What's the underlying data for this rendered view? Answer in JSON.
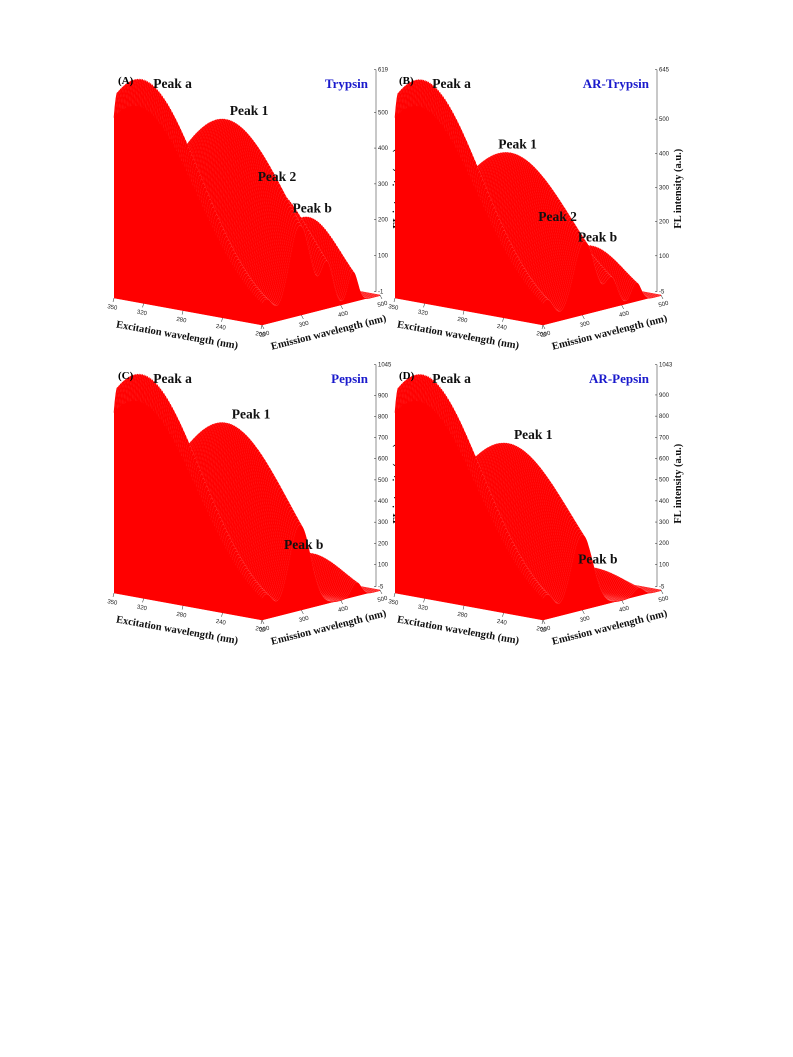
{
  "colors": {
    "surface": "#ff0000",
    "mesh": "#ffe0e0",
    "title": "#1a1acc"
  },
  "chart_data": [
    {
      "type": "surface",
      "panel": "(A)",
      "title": "Trypsin",
      "xlabel": "Emission wavelength (nm)",
      "ylabel": "Excitation wavelength (nm)",
      "zlabel": "FL intensity (a.u.)",
      "xlim": [
        200,
        500
      ],
      "ylim": [
        200,
        350
      ],
      "zlim": [
        -1,
        619
      ],
      "x_ticks": [
        "200",
        "300",
        "400",
        "500"
      ],
      "y_ticks": [
        "200",
        "240",
        "280",
        "320",
        "350"
      ],
      "z_ticks": [
        "-1",
        "100",
        "200",
        "300",
        "400",
        "500",
        "619"
      ],
      "peaks": [
        {
          "label": "Peak a",
          "value": 619
        },
        {
          "label": "Peak 1",
          "value": 510
        },
        {
          "label": "Peak 2",
          "value": 300
        },
        {
          "label": "Peak b",
          "value": 215
        }
      ]
    },
    {
      "type": "surface",
      "panel": "(B)",
      "title": "AR-Trypsin",
      "xlabel": "Emission wavelength (nm)",
      "ylabel": "Excitation wavelength (nm)",
      "zlabel": "FL intensity (a.u.)",
      "xlim": [
        200,
        500
      ],
      "ylim": [
        200,
        350
      ],
      "zlim": [
        -5,
        645
      ],
      "x_ticks": [
        "200",
        "300",
        "400",
        "500"
      ],
      "y_ticks": [
        "200",
        "240",
        "280",
        "320",
        "350"
      ],
      "z_ticks": [
        "-5",
        "100",
        "200",
        "300",
        "400",
        "500",
        "645"
      ],
      "peaks": [
        {
          "label": "Peak a",
          "value": 645
        },
        {
          "label": "Peak 1",
          "value": 430
        },
        {
          "label": "Peak 2",
          "value": 195
        },
        {
          "label": "Peak b",
          "value": 135
        }
      ]
    },
    {
      "type": "surface",
      "panel": "(C)",
      "title": "Pepsin",
      "xlabel": "Emission wavelength (nm)",
      "ylabel": "Excitation wavelength (nm)",
      "zlabel": "FL intensity (a.u.)",
      "xlim": [
        200,
        500
      ],
      "ylim": [
        200,
        350
      ],
      "zlim": [
        -5,
        1045
      ],
      "x_ticks": [
        "200",
        "300",
        "400",
        "500"
      ],
      "y_ticks": [
        "200",
        "240",
        "280",
        "320",
        "350"
      ],
      "z_ticks": [
        "-5",
        "100",
        "200",
        "300",
        "400",
        "500",
        "600",
        "700",
        "800",
        "900",
        "1045"
      ],
      "peaks": [
        {
          "label": "Peak a",
          "value": 1045
        },
        {
          "label": "Peak 1",
          "value": 820
        },
        {
          "label": "Peak b",
          "value": 160
        }
      ]
    },
    {
      "type": "surface",
      "panel": "(D)",
      "title": "AR-Pepsin",
      "xlabel": "Emission wavelength (nm)",
      "ylabel": "Excitation wavelength (nm)",
      "zlabel": "FL intensity (a.u.)",
      "xlim": [
        200,
        500
      ],
      "ylim": [
        200,
        350
      ],
      "zlim": [
        -5,
        1043
      ],
      "x_ticks": [
        "200",
        "300",
        "400",
        "500"
      ],
      "y_ticks": [
        "200",
        "240",
        "280",
        "320",
        "350"
      ],
      "z_ticks": [
        "-5",
        "100",
        "200",
        "300",
        "400",
        "500",
        "600",
        "700",
        "800",
        "900",
        "1043"
      ],
      "peaks": [
        {
          "label": "Peak a",
          "value": 1043
        },
        {
          "label": "Peak 1",
          "value": 720
        },
        {
          "label": "Peak b",
          "value": 90
        }
      ]
    }
  ]
}
